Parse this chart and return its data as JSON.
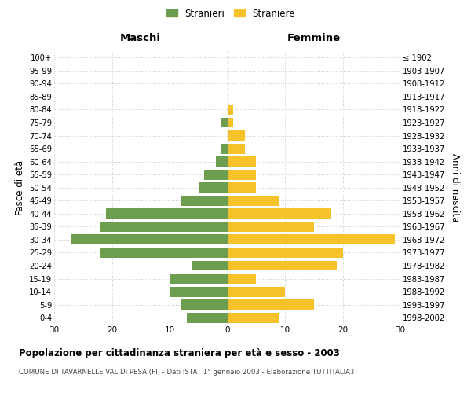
{
  "age_groups": [
    "0-4",
    "5-9",
    "10-14",
    "15-19",
    "20-24",
    "25-29",
    "30-34",
    "35-39",
    "40-44",
    "45-49",
    "50-54",
    "55-59",
    "60-64",
    "65-69",
    "70-74",
    "75-79",
    "80-84",
    "85-89",
    "90-94",
    "95-99",
    "100+"
  ],
  "birth_years": [
    "1998-2002",
    "1993-1997",
    "1988-1992",
    "1983-1987",
    "1978-1982",
    "1973-1977",
    "1968-1972",
    "1963-1967",
    "1958-1962",
    "1953-1957",
    "1948-1952",
    "1943-1947",
    "1938-1942",
    "1933-1937",
    "1928-1932",
    "1923-1927",
    "1918-1922",
    "1913-1917",
    "1908-1912",
    "1903-1907",
    "≤ 1902"
  ],
  "males": [
    7,
    8,
    10,
    10,
    6,
    22,
    27,
    22,
    21,
    8,
    5,
    4,
    2,
    1,
    0,
    1,
    0,
    0,
    0,
    0,
    0
  ],
  "females": [
    9,
    15,
    10,
    5,
    19,
    20,
    29,
    15,
    18,
    9,
    5,
    5,
    5,
    3,
    3,
    1,
    1,
    0,
    0,
    0,
    0
  ],
  "male_color": "#6d9e4f",
  "female_color": "#f5c229",
  "background_color": "#ffffff",
  "grid_color": "#cccccc",
  "dashed_line_color": "#999999",
  "title": "Popolazione per cittadinanza straniera per età e sesso - 2003",
  "subtitle": "COMUNE DI TAVARNELLE VAL DI PESA (FI) - Dati ISTAT 1° gennaio 2003 - Elaborazione TUTTITALIA.IT",
  "ylabel_left": "Fasce di età",
  "ylabel_right": "Anni di nascita",
  "xlabel_left": "Maschi",
  "xlabel_right": "Femmine",
  "legend_male": "Stranieri",
  "legend_female": "Straniere",
  "xlim": 30
}
